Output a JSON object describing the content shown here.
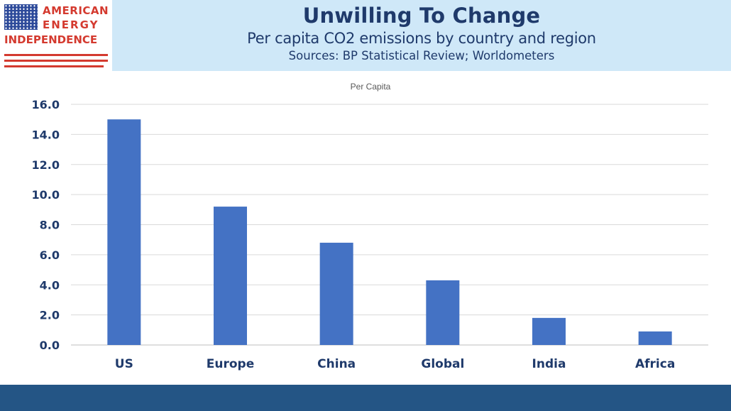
{
  "header": {
    "title": "Unwilling To Change",
    "subtitle": "Per capita CO2 emissions by country and region",
    "sources": "Sources: BP Statistical Review; Worldometers"
  },
  "logo": {
    "line1": "AMERICAN",
    "line2": "ENERGY",
    "line3": "INDEPENDENCE",
    "flag_icon": "us-flag-icon",
    "colors": {
      "red": "#d43a2f",
      "blue": "#2d4a9a"
    }
  },
  "colors": {
    "bar": "#4472c4",
    "title": "#1f3a6b",
    "header_band": "#cfe8f8",
    "footer": "#245585"
  },
  "chart_data": {
    "type": "bar",
    "title": "Per Capita",
    "categories": [
      "US",
      "Europe",
      "China",
      "Global",
      "India",
      "Africa"
    ],
    "values": [
      15.0,
      9.2,
      6.8,
      4.3,
      1.8,
      0.9
    ],
    "ylim": [
      0,
      16
    ],
    "yticks": [
      "0.0",
      "2.0",
      "4.0",
      "6.0",
      "8.0",
      "10.0",
      "12.0",
      "14.0",
      "16.0"
    ],
    "xlabel": "",
    "ylabel": "",
    "grid": true,
    "legend": "none"
  }
}
